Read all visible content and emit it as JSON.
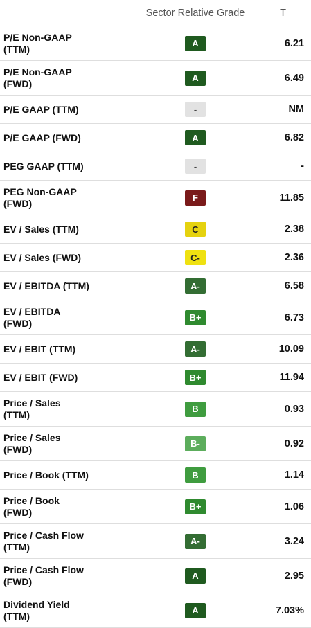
{
  "header": {
    "grade_label": "Sector Relative Grade",
    "ticker_label": "T"
  },
  "colors": {
    "A": "#1f5a1f",
    "A-": "#336d33",
    "B+": "#2f8a2f",
    "B": "#3f9c3f",
    "B-": "#5cad5c",
    "C": "#e5d20f",
    "C-": "#efe111",
    "F": "#7a1a1a",
    "-": "#e2e2e2"
  },
  "rows": [
    {
      "metric": [
        "P/E Non-GAAP",
        "(TTM)"
      ],
      "grade": "A",
      "value": "6.21"
    },
    {
      "metric": [
        "P/E Non-GAAP",
        "(FWD)"
      ],
      "grade": "A",
      "value": "6.49"
    },
    {
      "metric": [
        "P/E GAAP (TTM)"
      ],
      "grade": "-",
      "value": "NM"
    },
    {
      "metric": [
        "P/E GAAP (FWD)"
      ],
      "grade": "A",
      "value": "6.82"
    },
    {
      "metric": [
        "PEG GAAP (TTM)"
      ],
      "grade": "-",
      "value": "-"
    },
    {
      "metric": [
        "PEG Non-GAAP",
        "(FWD)"
      ],
      "grade": "F",
      "value": "11.85"
    },
    {
      "metric": [
        "EV / Sales (TTM)"
      ],
      "grade": "C",
      "value": "2.38"
    },
    {
      "metric": [
        "EV / Sales (FWD)"
      ],
      "grade": "C-",
      "value": "2.36"
    },
    {
      "metric": [
        "EV / EBITDA (TTM)"
      ],
      "grade": "A-",
      "value": "6.58"
    },
    {
      "metric": [
        "EV / EBITDA",
        "(FWD)"
      ],
      "grade": "B+",
      "value": "6.73"
    },
    {
      "metric": [
        "EV / EBIT (TTM)"
      ],
      "grade": "A-",
      "value": "10.09"
    },
    {
      "metric": [
        "EV / EBIT (FWD)"
      ],
      "grade": "B+",
      "value": "11.94"
    },
    {
      "metric": [
        "Price / Sales",
        "(TTM)"
      ],
      "grade": "B",
      "value": "0.93"
    },
    {
      "metric": [
        "Price / Sales",
        "(FWD)"
      ],
      "grade": "B-",
      "value": "0.92"
    },
    {
      "metric": [
        "Price / Book (TTM)"
      ],
      "grade": "B",
      "value": "1.14"
    },
    {
      "metric": [
        "Price / Book",
        "(FWD)"
      ],
      "grade": "B+",
      "value": "1.06"
    },
    {
      "metric": [
        "Price / Cash Flow",
        "(TTM)"
      ],
      "grade": "A-",
      "value": "3.24"
    },
    {
      "metric": [
        "Price / Cash Flow",
        "(FWD)"
      ],
      "grade": "A",
      "value": "2.95"
    },
    {
      "metric": [
        "Dividend Yield",
        "(TTM)"
      ],
      "grade": "A",
      "value": "7.03%"
    }
  ]
}
